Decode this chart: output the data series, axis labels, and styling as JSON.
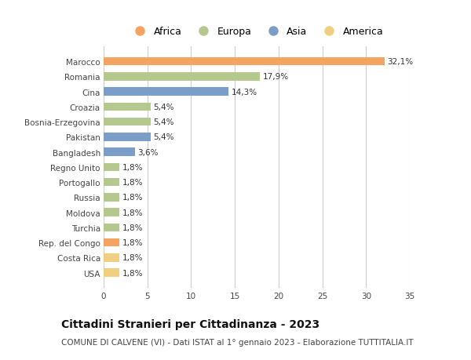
{
  "countries": [
    "Marocco",
    "Romania",
    "Cina",
    "Croazia",
    "Bosnia-Erzegovina",
    "Pakistan",
    "Bangladesh",
    "Regno Unito",
    "Portogallo",
    "Russia",
    "Moldova",
    "Turchia",
    "Rep. del Congo",
    "Costa Rica",
    "USA"
  ],
  "values": [
    32.1,
    17.9,
    14.3,
    5.4,
    5.4,
    5.4,
    3.6,
    1.8,
    1.8,
    1.8,
    1.8,
    1.8,
    1.8,
    1.8,
    1.8
  ],
  "labels": [
    "32,1%",
    "17,9%",
    "14,3%",
    "5,4%",
    "5,4%",
    "5,4%",
    "3,6%",
    "1,8%",
    "1,8%",
    "1,8%",
    "1,8%",
    "1,8%",
    "1,8%",
    "1,8%",
    "1,8%"
  ],
  "continents": [
    "Africa",
    "Europa",
    "Asia",
    "Europa",
    "Europa",
    "Asia",
    "Asia",
    "Europa",
    "Europa",
    "Europa",
    "Europa",
    "Europa",
    "Africa",
    "America",
    "America"
  ],
  "colors": {
    "Africa": "#F4A460",
    "Europa": "#B5C98E",
    "Asia": "#7B9EC8",
    "America": "#F0D080"
  },
  "xlim": [
    0,
    35
  ],
  "xticks": [
    0,
    5,
    10,
    15,
    20,
    25,
    30,
    35
  ],
  "title": "Cittadini Stranieri per Cittadinanza - 2023",
  "subtitle": "COMUNE DI CALVENE (VI) - Dati ISTAT al 1° gennaio 2023 - Elaborazione TUTTITALIA.IT",
  "bg_color": "#ffffff",
  "grid_color": "#cccccc",
  "bar_height": 0.55,
  "title_fontsize": 10,
  "subtitle_fontsize": 7.5,
  "label_fontsize": 7.5,
  "tick_fontsize": 7.5,
  "legend_fontsize": 9
}
